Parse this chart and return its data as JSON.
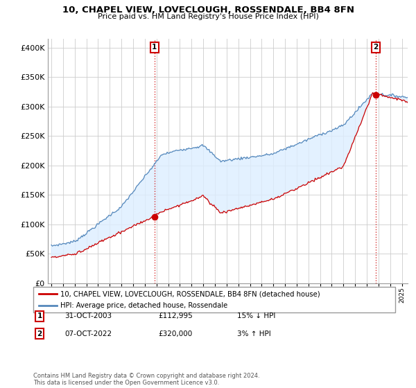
{
  "title": "10, CHAPEL VIEW, LOVECLOUGH, ROSSENDALE, BB4 8FN",
  "subtitle": "Price paid vs. HM Land Registry's House Price Index (HPI)",
  "ytick_values": [
    0,
    50000,
    100000,
    150000,
    200000,
    250000,
    300000,
    350000,
    400000
  ],
  "ylim": [
    0,
    415000
  ],
  "xlim_start": 1994.7,
  "xlim_end": 2025.5,
  "property_color": "#cc0000",
  "hpi_color": "#5588bb",
  "hpi_fill_color": "#ddeeff",
  "transaction1": {
    "date": "31-OCT-2003",
    "price": 112995,
    "label": "1",
    "year": 2003.83
  },
  "transaction2": {
    "date": "07-OCT-2022",
    "price": 320000,
    "label": "2",
    "year": 2022.77
  },
  "legend_property": "10, CHAPEL VIEW, LOVECLOUGH, ROSSENDALE, BB4 8FN (detached house)",
  "legend_hpi": "HPI: Average price, detached house, Rossendale",
  "annotation1_date": "31-OCT-2003",
  "annotation1_price": "£112,995",
  "annotation1_hpi": "15% ↓ HPI",
  "annotation2_date": "07-OCT-2022",
  "annotation2_price": "£320,000",
  "annotation2_hpi": "3% ↑ HPI",
  "footer": "Contains HM Land Registry data © Crown copyright and database right 2024.\nThis data is licensed under the Open Government Licence v3.0.",
  "background_color": "#ffffff",
  "grid_color": "#cccccc"
}
